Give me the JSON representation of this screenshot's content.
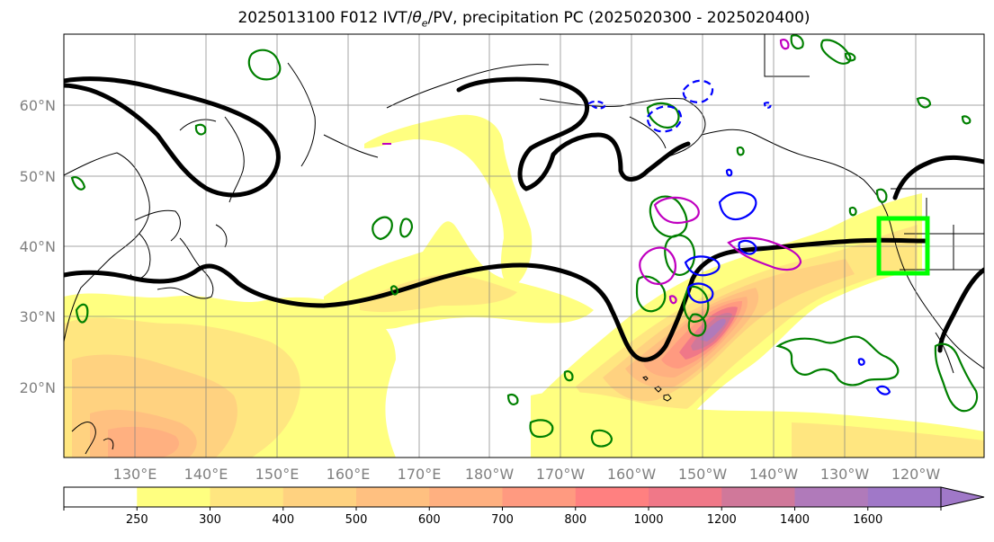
{
  "title": {
    "prefix": "2025013100 F012 IVT/",
    "theta": "θ",
    "sub": "e",
    "suffix": "/PV, precipitation PC (2025020300 - 2025020400)"
  },
  "axes": {
    "lat_labels": [
      "60°N",
      "50°N",
      "40°N",
      "30°N",
      "20°N"
    ],
    "lon_labels": [
      "130°E",
      "140°E",
      "150°E",
      "160°E",
      "170°E",
      "180°W",
      "170°W",
      "160°W",
      "150°W",
      "140°W",
      "130°W",
      "120°W"
    ]
  },
  "colorbar": {
    "levels": [
      "250",
      "300",
      "400",
      "500",
      "600",
      "700",
      "800",
      "1000",
      "1200",
      "1400",
      "1600"
    ],
    "colors": [
      "#ffffff",
      "#ffff80",
      "#ffe680",
      "#ffd280",
      "#ffc080",
      "#ffb080",
      "#ff9a80",
      "#ff8080",
      "#f07888",
      "#d0789a",
      "#b07aba",
      "#a078c8"
    ]
  },
  "map_colors": {
    "ocean": "#ffffff",
    "coast": "#000000",
    "jet": "#000000",
    "precip": "#008000",
    "pv_positive": "#0000ff",
    "theta": "#c000c0",
    "target_box": "#00ff00"
  }
}
